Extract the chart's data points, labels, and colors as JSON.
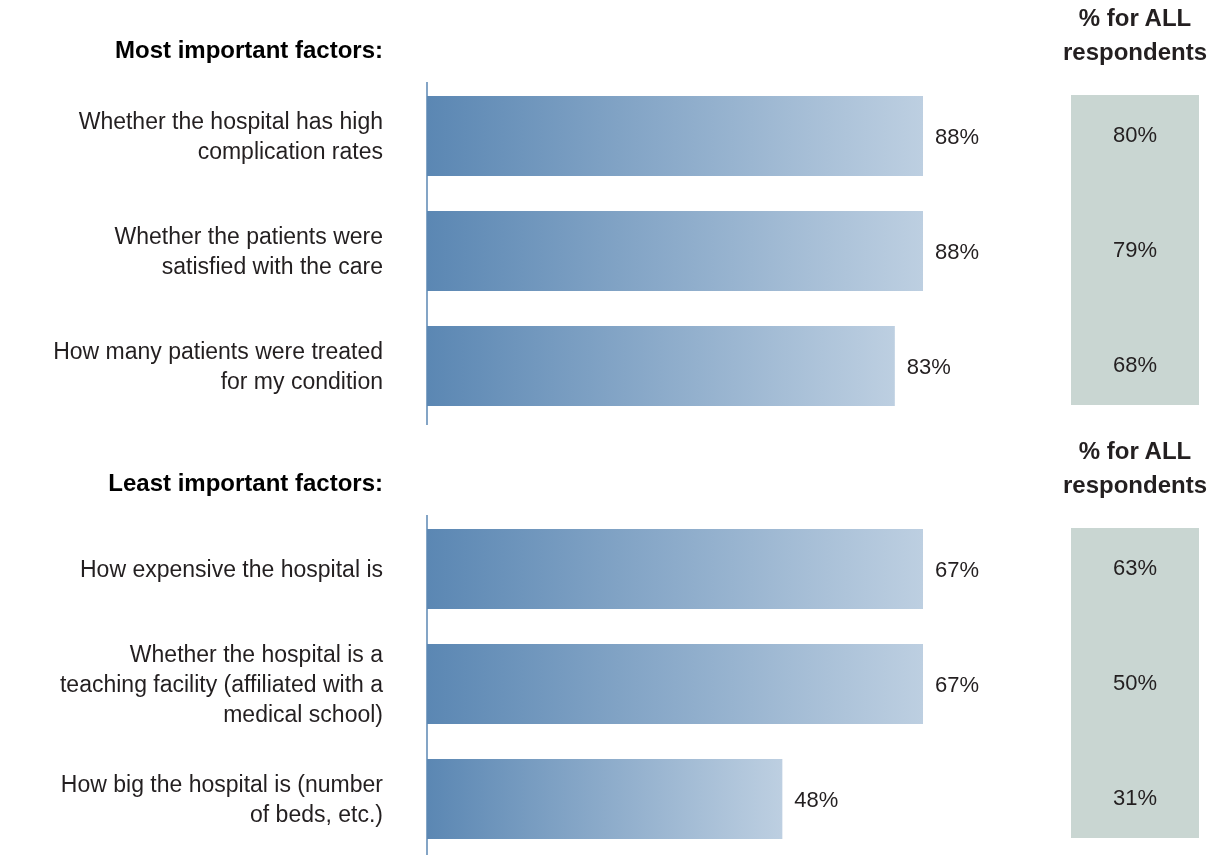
{
  "chart_data": [
    {
      "type": "bar",
      "orientation": "horizontal",
      "title": "Most important factors:",
      "categories": [
        "Whether the hospital has high complication rates",
        "Whether the patients were satisfied with the care",
        "How many patients were treated for my condition"
      ],
      "values": [
        88,
        88,
        83
      ],
      "color": "#5b87b3",
      "value_labels": [
        "88%",
        "88%",
        "83%"
      ]
    },
    {
      "type": "other",
      "title": "% for ALL respondents",
      "categories": [
        null,
        null,
        null
      ],
      "values": [
        80,
        79,
        68
      ],
      "color": "#c9d6d2",
      "value_labels": [
        "80%",
        "79%",
        "68%"
      ]
    },
    {
      "type": "bar",
      "orientation": "horizontal",
      "title": "Least important factors:",
      "categories": [
        "How expensive the hospital is",
        "Whether the hospital is a teaching facility (affiliated with a medical school)",
        "How big the hospital is (number of beds, etc.)"
      ],
      "values": [
        67,
        67,
        48
      ],
      "color": "#5b87b3",
      "value_labels": [
        "67%",
        "67%",
        "48%"
      ]
    },
    {
      "type": "other",
      "title": "% for ALL respondents",
      "categories": [
        null,
        null,
        null
      ],
      "values": [
        63,
        50,
        31
      ],
      "color": "#c9d6d2",
      "value_labels": [
        "63%",
        "50%",
        "31%"
      ]
    }
  ]
}
